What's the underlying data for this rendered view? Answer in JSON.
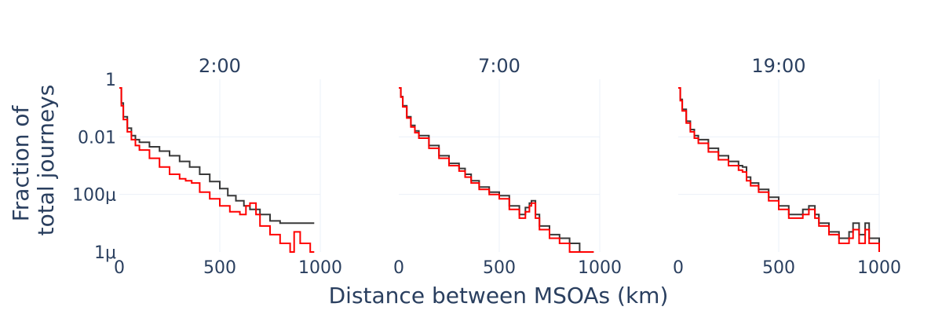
{
  "chart_data": {
    "type": "line",
    "layout": "small-multiples",
    "xlabel": "Distance between MSOAs (km)",
    "ylabel": "Fraction of total journeys",
    "ylabel_lines": [
      "Fraction of",
      "total journeys"
    ],
    "xlim": [
      0,
      1000
    ],
    "ylim": [
      1e-06,
      1
    ],
    "yscale": "log",
    "xticks": [
      0,
      500,
      1000
    ],
    "xtick_labels": [
      "0",
      "500",
      "1000"
    ],
    "yticks": [
      1,
      0.01,
      0.0001,
      1e-06
    ],
    "ytick_labels": [
      "1",
      "0.01",
      "100μ",
      "1μ"
    ],
    "grid": true,
    "colors": {
      "simulated": "#000000",
      "observed": "#ff0000",
      "grid": "#ebf0f8",
      "text": "#2a3f5f"
    },
    "panels": [
      {
        "title": "2:00",
        "simulated": {
          "x": [
            0,
            10,
            20,
            40,
            60,
            80,
            100,
            150,
            200,
            250,
            300,
            350,
            400,
            450,
            500,
            540,
            580,
            620,
            650,
            700,
            750,
            800,
            850,
            900,
            950
          ],
          "y": [
            0.5,
            0.15,
            0.05,
            0.02,
            0.011,
            0.008,
            0.0065,
            0.0045,
            0.0032,
            0.0022,
            0.0014,
            0.0009,
            0.0005,
            0.00028,
            0.00016,
            9e-05,
            6e-05,
            4e-05,
            3e-05,
            2e-05,
            1.2e-05,
            1e-05,
            1e-05,
            1e-05,
            1e-05
          ]
        },
        "observed": {
          "x": [
            0,
            10,
            20,
            40,
            60,
            80,
            100,
            150,
            200,
            250,
            300,
            330,
            360,
            400,
            450,
            500,
            550,
            600,
            630,
            650,
            680,
            700,
            750,
            800,
            850,
            870,
            900,
            950
          ],
          "y": [
            0.5,
            0.12,
            0.04,
            0.015,
            0.008,
            0.005,
            0.0035,
            0.0018,
            0.0009,
            0.0005,
            0.00035,
            0.0003,
            0.00025,
            0.00012,
            7e-05,
            4e-05,
            2.5e-05,
            2e-05,
            4e-05,
            5e-05,
            2e-05,
            8e-06,
            4e-06,
            2e-06,
            1e-06,
            5e-06,
            2e-06,
            1e-06
          ]
        }
      },
      {
        "title": "7:00",
        "simulated": {
          "x": [
            0,
            10,
            20,
            40,
            60,
            80,
            100,
            150,
            200,
            250,
            300,
            330,
            360,
            400,
            450,
            500,
            550,
            600,
            630,
            650,
            660,
            680,
            700,
            750,
            800,
            850,
            900,
            950
          ],
          "y": [
            0.5,
            0.25,
            0.12,
            0.05,
            0.025,
            0.016,
            0.011,
            0.005,
            0.0022,
            0.0012,
            0.0008,
            0.0005,
            0.0003,
            0.00018,
            0.00012,
            9e-05,
            4e-05,
            2e-05,
            3.5e-05,
            5e-05,
            6e-05,
            2e-05,
            8e-06,
            4e-06,
            3e-06,
            2e-06,
            1e-06,
            1e-06
          ]
        },
        "observed": {
          "x": [
            0,
            10,
            20,
            40,
            60,
            80,
            100,
            150,
            200,
            250,
            300,
            330,
            360,
            400,
            450,
            500,
            550,
            600,
            630,
            650,
            660,
            680,
            700,
            750,
            800,
            850,
            900,
            950
          ],
          "y": [
            0.5,
            0.24,
            0.11,
            0.045,
            0.022,
            0.014,
            0.009,
            0.004,
            0.0018,
            0.001,
            0.00065,
            0.0004,
            0.00025,
            0.00015,
            0.0001,
            7e-05,
            3e-05,
            1.5e-05,
            2.5e-05,
            4e-05,
            5e-05,
            1.5e-05,
            6e-06,
            3e-06,
            2e-06,
            1e-06,
            1e-06,
            1e-06
          ]
        }
      },
      {
        "title": "19:00",
        "simulated": {
          "x": [
            0,
            10,
            20,
            40,
            60,
            80,
            100,
            150,
            200,
            250,
            300,
            320,
            340,
            360,
            400,
            450,
            500,
            550,
            600,
            620,
            650,
            680,
            700,
            750,
            800,
            850,
            870,
            900,
            930,
            950,
            1000
          ],
          "y": [
            0.5,
            0.2,
            0.09,
            0.035,
            0.018,
            0.011,
            0.008,
            0.004,
            0.0022,
            0.0014,
            0.001,
            0.0009,
            0.0004,
            0.00025,
            0.00015,
            8e-05,
            4e-05,
            2e-05,
            2e-05,
            3e-05,
            4e-05,
            2e-05,
            1e-05,
            5e-06,
            3e-06,
            5e-06,
            1e-05,
            4e-06,
            1e-05,
            3e-06,
            1e-06
          ]
        },
        "observed": {
          "x": [
            0,
            10,
            20,
            40,
            60,
            80,
            100,
            150,
            200,
            250,
            300,
            320,
            340,
            360,
            400,
            450,
            500,
            550,
            600,
            620,
            650,
            680,
            700,
            750,
            800,
            850,
            870,
            900,
            930,
            950,
            1000
          ],
          "y": [
            0.5,
            0.18,
            0.08,
            0.03,
            0.015,
            0.009,
            0.006,
            0.003,
            0.0016,
            0.001,
            0.0007,
            0.0006,
            0.0003,
            0.0002,
            0.00012,
            6e-05,
            3e-05,
            1.5e-05,
            1.5e-05,
            2e-05,
            3e-05,
            1.5e-05,
            8e-06,
            4e-06,
            2e-06,
            3e-06,
            6e-06,
            2e-06,
            6e-06,
            2e-06,
            1e-06
          ]
        }
      }
    ]
  }
}
